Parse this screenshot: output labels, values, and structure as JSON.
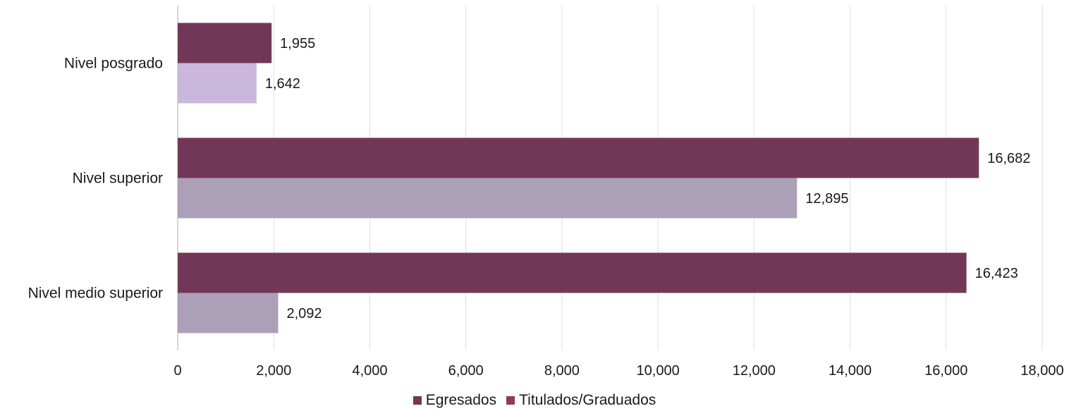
{
  "chart_data": {
    "type": "bar",
    "orientation": "horizontal",
    "categories": [
      "Nivel posgrado",
      "Nivel superior",
      "Nivel medio superior"
    ],
    "series": [
      {
        "name": "Egresados",
        "values": [
          1955,
          16682,
          16423
        ],
        "color": "#723757"
      },
      {
        "name": "Titulados/Graduados",
        "values": [
          1642,
          12895,
          2092
        ],
        "colors": [
          "#c9b8dc",
          "#aca0b9",
          "#aca0b9"
        ],
        "legend_color": "#8e3a5e"
      }
    ],
    "data_labels": [
      [
        "1,955",
        "16,682",
        "16,423"
      ],
      [
        "1,642",
        "12,895",
        "2,092"
      ]
    ],
    "xlim": [
      0,
      18000
    ],
    "x_ticks": [
      "0",
      "2,000",
      "4,000",
      "6,000",
      "8,000",
      "10,000",
      "12,000",
      "14,000",
      "16,000",
      "18,000"
    ],
    "grid": "vertical",
    "legend_position": "bottom"
  }
}
